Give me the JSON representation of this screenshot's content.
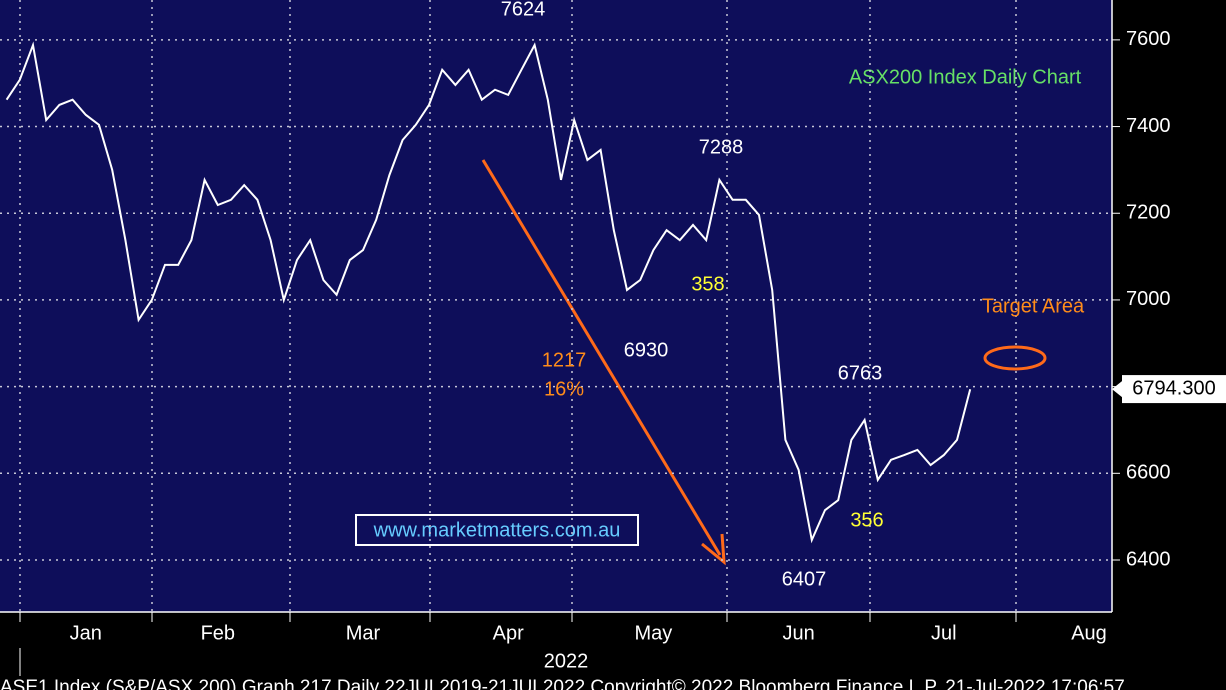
{
  "chart_data": {
    "type": "line",
    "title": "ASX200 Index Daily Chart",
    "categories": [
      null,
      null,
      null,
      null,
      null,
      null,
      "Jan",
      null,
      null,
      null,
      null,
      null,
      null,
      null,
      null,
      null,
      "Feb",
      null,
      null,
      null,
      null,
      null,
      null,
      null,
      null,
      null,
      null,
      "Mar",
      null,
      null,
      null,
      null,
      null,
      null,
      null,
      null,
      null,
      null,
      "Apr",
      null,
      null,
      null,
      null,
      null,
      null,
      null,
      null,
      null,
      null,
      "May",
      null,
      null,
      null,
      null,
      null,
      null,
      null,
      null,
      null,
      null,
      "Jun",
      null,
      null,
      null,
      null,
      null,
      null,
      null,
      null,
      null,
      null,
      "Jul",
      null,
      null,
      null,
      null,
      null,
      null,
      null,
      null,
      null,
      null,
      "Aug",
      null
    ],
    "series": [
      {
        "name": "ASX200",
        "color": "#ffffff",
        "values": [
          7462,
          7508,
          7588,
          7415,
          7450,
          7462,
          7427,
          7404,
          7300,
          7138,
          6954,
          7000,
          7081,
          7081,
          7138,
          7277,
          7219,
          7231,
          7265,
          7231,
          7138,
          7000,
          7092,
          7138,
          7046,
          7012,
          7092,
          7115,
          7185,
          7288,
          7369,
          7404,
          7450,
          7531,
          7496,
          7531,
          7462,
          7485,
          7473,
          7531,
          7588,
          7462,
          7277,
          7415,
          7323,
          7346,
          7161,
          7023,
          7046,
          7115,
          7161,
          7138,
          7173,
          7138,
          7277,
          7231,
          7231,
          7196,
          7023,
          6677,
          6608,
          6446,
          6515,
          6538,
          6677,
          6723,
          6585,
          6631,
          6642,
          6654,
          6619,
          6642,
          6677,
          6794,
          null,
          null,
          null,
          null,
          null,
          null,
          null,
          null,
          null,
          null
        ]
      }
    ],
    "ylim": [
      6280,
      7692
    ],
    "yticks": [
      6400,
      6600,
      6800,
      7000,
      7200,
      7400,
      7600
    ],
    "grid": true,
    "last_price": {
      "value": 6794.3,
      "label": "6794.300"
    },
    "x_axis_year": "2022",
    "annotations": [
      {
        "text": "7624",
        "color": "#ffffff"
      },
      {
        "text": "7288",
        "color": "#ffffff"
      },
      {
        "text": "6930",
        "color": "#ffffff"
      },
      {
        "text": "6407",
        "color": "#ffffff"
      },
      {
        "text": "6763",
        "color": "#ffffff"
      },
      {
        "text": "358",
        "color": "#ffff33"
      },
      {
        "text": "356",
        "color": "#ffff33"
      },
      {
        "text": "1217",
        "color": "#ff8c1a"
      },
      {
        "text": "16%",
        "color": "#ff8c1a"
      },
      {
        "text": "Target Area",
        "color": "#ff8c1a"
      }
    ],
    "watermark": "www.marketmatters.com.au",
    "footer": "ASE1 Index (S&P/ASX 200) Graph 217  Daily 22JUL2019-21JUL2022 Copyright© 2022 Bloomberg Finance L.P. 21-Jul-2022 17:06:57"
  }
}
